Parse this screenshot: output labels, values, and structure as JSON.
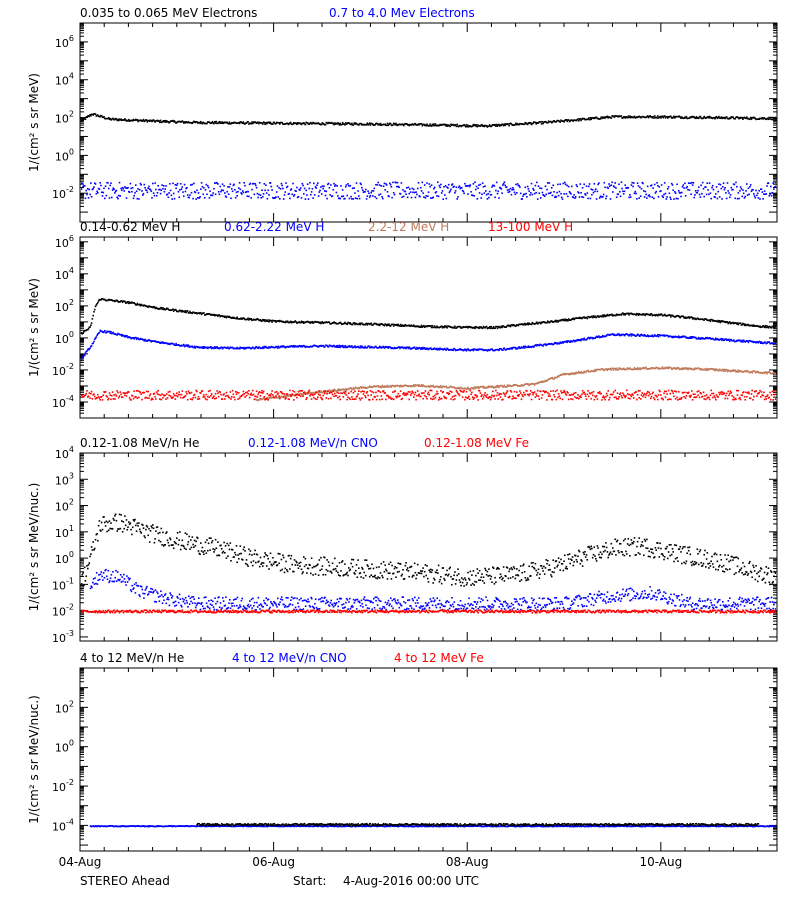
{
  "colors": {
    "black": "#000000",
    "blue": "#0000ff",
    "tan": "#c07a5a",
    "red": "#ff0000"
  },
  "footer": {
    "spacecraft": "STEREO Ahead",
    "start_label": "Start:",
    "start_value": "4-Aug-2016 00:00 UTC"
  },
  "chart_data": [
    {
      "type": "scatter",
      "panel": "electrons",
      "legend": [
        {
          "text": "0.035 to 0.065 MeV Electrons",
          "color": "#000000"
        },
        {
          "text": "0.7 to 4.0 Mev Electrons",
          "color": "#0000ff"
        }
      ],
      "ylabel": "1/(cm² s sr MeV)",
      "yscale": "log",
      "ylim": [
        0.0003,
        10000000
      ],
      "ytick_labels": [
        {
          "value": 1000000,
          "base": "10",
          "exp": "6"
        },
        {
          "value": 10000,
          "base": "10",
          "exp": "4"
        },
        {
          "value": 100,
          "base": "10",
          "exp": "2"
        },
        {
          "value": 1,
          "base": "10",
          "exp": "0"
        },
        {
          "value": 0.01,
          "base": "10",
          "exp": "-2"
        }
      ],
      "series": [
        {
          "color": "#000000",
          "points": [
            [
              0.0,
              70
            ],
            [
              0.05,
              100
            ],
            [
              0.12,
              170
            ],
            [
              0.3,
              90
            ],
            [
              0.8,
              70
            ],
            [
              1.2,
              60
            ],
            [
              2,
              55
            ],
            [
              3,
              50
            ],
            [
              4.2,
              40
            ],
            [
              4.8,
              60
            ],
            [
              5.5,
              120
            ],
            [
              6,
              120
            ],
            [
              6.5,
              110
            ],
            [
              7,
              100
            ],
            [
              7.2,
              100
            ]
          ]
        },
        {
          "color": "#0000ff",
          "points": [
            [
              0,
              0.015
            ],
            [
              1,
              0.015
            ],
            [
              2,
              0.015
            ],
            [
              3,
              0.015
            ],
            [
              4,
              0.015
            ],
            [
              5,
              0.015
            ],
            [
              6,
              0.015
            ],
            [
              7,
              0.015
            ],
            [
              7.2,
              0.015
            ]
          ],
          "scatter": 0.45
        }
      ]
    },
    {
      "type": "scatter",
      "panel": "protons",
      "legend": [
        {
          "text": "0.14-0.62 MeV H",
          "color": "#000000"
        },
        {
          "text": "0.62-2.22 MeV H",
          "color": "#0000ff"
        },
        {
          "text": "2.2-12 MeV H",
          "color": "#c07a5a"
        },
        {
          "text": "13-100 MeV H",
          "color": "#ff0000"
        }
      ],
      "ylabel": "1/(cm² s sr MeV)",
      "yscale": "log",
      "ylim": [
        1e-05,
        2000000
      ],
      "ytick_labels": [
        {
          "value": 1000000,
          "base": "10",
          "exp": "6"
        },
        {
          "value": 10000,
          "base": "10",
          "exp": "4"
        },
        {
          "value": 100,
          "base": "10",
          "exp": "2"
        },
        {
          "value": 1,
          "base": "10",
          "exp": "0"
        },
        {
          "value": 0.01,
          "base": "10",
          "exp": "-2"
        },
        {
          "value": 0.0001,
          "base": "10",
          "exp": "-4"
        }
      ],
      "series": [
        {
          "color": "#000000",
          "points": [
            [
              0,
              2
            ],
            [
              0.1,
              5
            ],
            [
              0.15,
              100
            ],
            [
              0.2,
              300
            ],
            [
              0.3,
              250
            ],
            [
              0.5,
              180
            ],
            [
              0.8,
              80
            ],
            [
              1.2,
              40
            ],
            [
              1.6,
              20
            ],
            [
              2,
              12
            ],
            [
              2.5,
              10
            ],
            [
              3,
              8
            ],
            [
              3.5,
              6
            ],
            [
              4,
              5
            ],
            [
              4.3,
              5
            ],
            [
              4.5,
              7
            ],
            [
              4.9,
              12
            ],
            [
              5.2,
              20
            ],
            [
              5.6,
              35
            ],
            [
              6,
              30
            ],
            [
              6.3,
              20
            ],
            [
              6.7,
              10
            ],
            [
              7,
              6
            ],
            [
              7.2,
              5
            ]
          ]
        },
        {
          "color": "#0000ff",
          "points": [
            [
              0,
              0.05
            ],
            [
              0.1,
              0.3
            ],
            [
              0.2,
              3
            ],
            [
              0.3,
              2.5
            ],
            [
              0.5,
              1.2
            ],
            [
              0.8,
              0.6
            ],
            [
              1.2,
              0.3
            ],
            [
              1.6,
              0.25
            ],
            [
              2,
              0.3
            ],
            [
              2.5,
              0.35
            ],
            [
              3,
              0.3
            ],
            [
              3.5,
              0.25
            ],
            [
              4,
              0.2
            ],
            [
              4.3,
              0.2
            ],
            [
              4.6,
              0.3
            ],
            [
              5,
              0.6
            ],
            [
              5.5,
              1.8
            ],
            [
              6,
              1.5
            ],
            [
              6.5,
              1
            ],
            [
              7,
              0.6
            ],
            [
              7.2,
              0.5
            ]
          ]
        },
        {
          "color": "#c07a5a",
          "points": [
            [
              1.8,
              0.00015
            ],
            [
              2.5,
              0.0005
            ],
            [
              3,
              0.001
            ],
            [
              3.5,
              0.0012
            ],
            [
              4,
              0.0008
            ],
            [
              4.5,
              0.0012
            ],
            [
              4.7,
              0.0015
            ],
            [
              5,
              0.006
            ],
            [
              5.4,
              0.012
            ],
            [
              6,
              0.015
            ],
            [
              6.5,
              0.012
            ],
            [
              7,
              0.008
            ],
            [
              7.2,
              0.007
            ]
          ]
        },
        {
          "color": "#ff0000",
          "points": [
            [
              0,
              0.0003
            ],
            [
              1,
              0.0003
            ],
            [
              2,
              0.0003
            ],
            [
              3,
              0.0003
            ],
            [
              4,
              0.0003
            ],
            [
              5,
              0.0003
            ],
            [
              6,
              0.0003
            ],
            [
              7,
              0.0003
            ],
            [
              7.2,
              0.0003
            ]
          ],
          "scatter": 0.3
        }
      ]
    },
    {
      "type": "scatter",
      "panel": "suprathermal",
      "legend": [
        {
          "text": "0.12-1.08 MeV/n He",
          "color": "#000000"
        },
        {
          "text": "0.12-1.08 MeV/n CNO",
          "color": "#0000ff"
        },
        {
          "text": "0.12-1.08 MeV Fe",
          "color": "#ff0000"
        }
      ],
      "ylabel": "1/(cm² s sr MeV/nuc.)",
      "yscale": "log",
      "ylim": [
        0.0007,
        10000
      ],
      "ytick_labels": [
        {
          "value": 10000,
          "base": "10",
          "exp": "4"
        },
        {
          "value": 1000,
          "base": "10",
          "exp": "3"
        },
        {
          "value": 100,
          "base": "10",
          "exp": "2"
        },
        {
          "value": 10,
          "base": "10",
          "exp": "1"
        },
        {
          "value": 1,
          "base": "10",
          "exp": "0"
        },
        {
          "value": 0.1,
          "base": "10",
          "exp": "-1"
        },
        {
          "value": 0.01,
          "base": "10",
          "exp": "-2"
        },
        {
          "value": 0.001,
          "base": "10",
          "exp": "-3"
        }
      ],
      "series": [
        {
          "color": "#000000",
          "points": [
            [
              0,
              0.1
            ],
            [
              0.1,
              1
            ],
            [
              0.2,
              20
            ],
            [
              0.4,
              25
            ],
            [
              0.7,
              10
            ],
            [
              1,
              5
            ],
            [
              1.4,
              2.5
            ],
            [
              1.8,
              1
            ],
            [
              2.2,
              0.6
            ],
            [
              2.6,
              0.5
            ],
            [
              3,
              0.4
            ],
            [
              3.5,
              0.3
            ],
            [
              4,
              0.2
            ],
            [
              4.5,
              0.25
            ],
            [
              4.9,
              0.5
            ],
            [
              5.2,
              1.2
            ],
            [
              5.5,
              2.5
            ],
            [
              5.8,
              3
            ],
            [
              6.2,
              1.5
            ],
            [
              6.6,
              0.8
            ],
            [
              7,
              0.3
            ],
            [
              7.2,
              0.2
            ]
          ],
          "scatter": 0.35
        },
        {
          "color": "#0000ff",
          "points": [
            [
              0.1,
              0.1
            ],
            [
              0.2,
              0.25
            ],
            [
              0.4,
              0.2
            ],
            [
              0.6,
              0.06
            ],
            [
              0.9,
              0.03
            ],
            [
              1.2,
              0.02
            ],
            [
              2,
              0.02
            ],
            [
              3,
              0.02
            ],
            [
              4,
              0.02
            ],
            [
              5,
              0.02
            ],
            [
              5.5,
              0.04
            ],
            [
              5.9,
              0.05
            ],
            [
              6.3,
              0.02
            ],
            [
              7,
              0.02
            ],
            [
              7.2,
              0.02
            ]
          ],
          "scatter": 0.25
        },
        {
          "color": "#ff0000",
          "points": [
            [
              0,
              0.01
            ],
            [
              1,
              0.01
            ],
            [
              2,
              0.01
            ],
            [
              3,
              0.01
            ],
            [
              4,
              0.01
            ],
            [
              5,
              0.01
            ],
            [
              6,
              0.01
            ],
            [
              7,
              0.01
            ],
            [
              7.2,
              0.01
            ]
          ],
          "scatter": 0.05
        }
      ]
    },
    {
      "type": "scatter",
      "panel": "energetic-heavy",
      "legend": [
        {
          "text": "4 to 12 MeV/n He",
          "color": "#000000"
        },
        {
          "text": "4 to 12 MeV/n CNO",
          "color": "#0000ff"
        },
        {
          "text": "4 to 12 MeV Fe",
          "color": "#ff0000"
        }
      ],
      "ylabel": "1/(cm² s sr MeV/nuc.)",
      "yscale": "log",
      "ylim": [
        5e-06,
        10000
      ],
      "ytick_labels": [
        {
          "value": 100,
          "base": "10",
          "exp": "2"
        },
        {
          "value": 1,
          "base": "10",
          "exp": "0"
        },
        {
          "value": 0.01,
          "base": "10",
          "exp": "-2"
        },
        {
          "value": 0.0001,
          "base": "10",
          "exp": "-4"
        }
      ],
      "series": [
        {
          "color": "#0000ff",
          "points": [
            [
              0.1,
              0.0001
            ],
            [
              1,
              0.0001
            ],
            [
              2,
              0.0001
            ],
            [
              3,
              0.0001
            ],
            [
              4,
              0.0001
            ],
            [
              5,
              0.0001
            ],
            [
              6,
              0.0001
            ],
            [
              7,
              0.0001
            ],
            [
              7.2,
              0.0001
            ]
          ],
          "scatter": 0.02
        },
        {
          "color": "#000000",
          "points": [
            [
              1.2,
              0.00012
            ],
            [
              2,
              0.00012
            ],
            [
              3,
              0.00012
            ],
            [
              4,
              0.00012
            ],
            [
              5,
              0.00012
            ],
            [
              6,
              0.00012
            ],
            [
              7,
              0.00012
            ]
          ],
          "scatter": 0.05
        }
      ]
    }
  ],
  "x_axis": {
    "unit": "days since 4-Aug-2016",
    "xlim": [
      0,
      7.2
    ],
    "ticks": [
      {
        "value": 0,
        "label": "04-Aug"
      },
      {
        "value": 2,
        "label": "06-Aug"
      },
      {
        "value": 4,
        "label": "08-Aug"
      },
      {
        "value": 6,
        "label": "10-Aug"
      }
    ]
  }
}
